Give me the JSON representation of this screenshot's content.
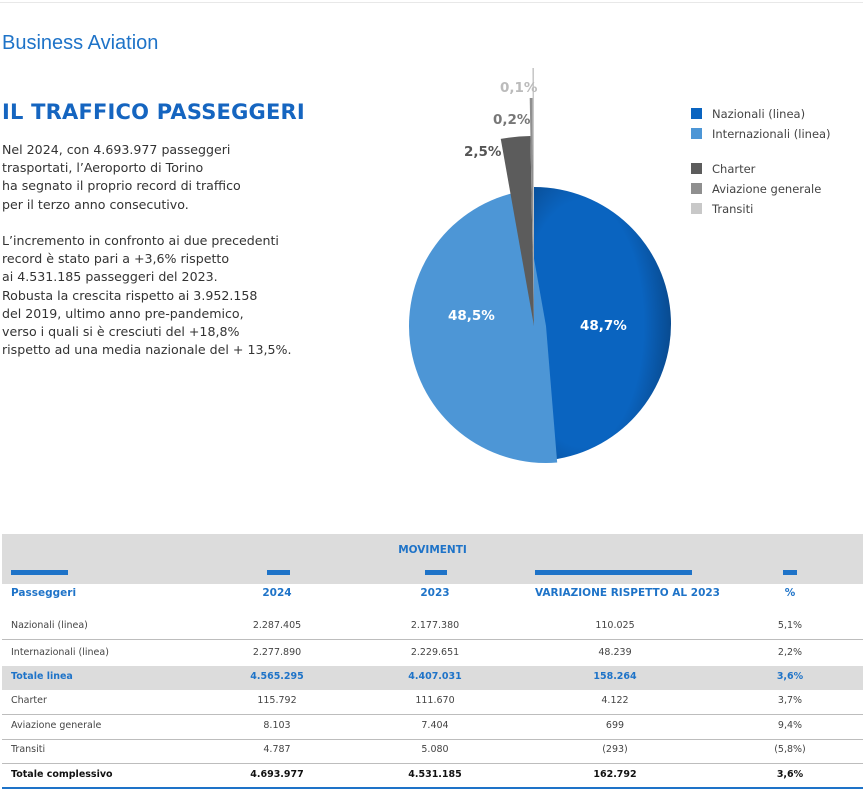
{
  "header": {
    "section_title": "Business Aviation"
  },
  "heading": "IL TRAFFICO PASSEGGERI",
  "paragraph1": [
    "Nel 2024, con 4.693.977 passeggeri",
    "trasportati, l’Aeroporto di Torino",
    "ha segnato il proprio record di traffico",
    "per il terzo anno consecutivo."
  ],
  "paragraph2": [
    "L’incremento in confronto ai due precedenti",
    "record è stato pari a +3,6% rispetto",
    "ai 4.531.185 passeggeri del 2023.",
    "Robusta la crescita rispetto ai 3.952.158",
    "del 2019, ultimo anno pre-pandemico,",
    "verso i quali si è cresciuti del +18,8%",
    "rispetto ad una media nazionale del + 13,5%."
  ],
  "chart_data": {
    "type": "pie",
    "title": "",
    "slices": [
      {
        "label": "Nazionali (linea)",
        "value": 48.7,
        "display": "48,7%",
        "color": "#0a64c0"
      },
      {
        "label": "Internazionali (linea)",
        "value": 48.5,
        "display": "48,5%",
        "color": "#4d96d6"
      },
      {
        "label": "Charter",
        "value": 2.5,
        "display": "2,5%",
        "color": "#5c5c5c"
      },
      {
        "label": "Aviazione generale",
        "value": 0.2,
        "display": "0,2%",
        "color": "#8f8f8f"
      },
      {
        "label": "Transiti",
        "value": 0.1,
        "display": "0,1%",
        "color": "#c8c8c8"
      }
    ],
    "legend": {
      "position": "right",
      "items": [
        {
          "label": "Nazionali (linea)",
          "color": "#0a64c0"
        },
        {
          "label": "Internazionali (linea)",
          "color": "#4d96d6"
        },
        {
          "label": "Charter",
          "color": "#5c5c5c"
        },
        {
          "label": "Aviazione generale",
          "color": "#8f8f8f"
        },
        {
          "label": "Transiti",
          "color": "#c8c8c8"
        }
      ]
    }
  },
  "table": {
    "title": "MOVIMENTI",
    "headers": [
      "Passeggeri",
      "2024",
      "2023",
      "VARIAZIONE RISPETTO AL 2023",
      "%"
    ],
    "rows": [
      [
        "Nazionali (linea)",
        "2.287.405",
        "2.177.380",
        "110.025",
        "5,1%"
      ],
      [
        "Internazionali (linea)",
        "2.277.890",
        "2.229.651",
        "48.239",
        "2,2%"
      ],
      [
        "Totale linea",
        "4.565.295",
        "4.407.031",
        "158.264",
        "3,6%"
      ],
      [
        "Charter",
        "115.792",
        "111.670",
        "4.122",
        "3,7%"
      ],
      [
        "Aviazione generale",
        "8.103",
        "7.404",
        "699",
        "9,4%"
      ],
      [
        "Transiti",
        "4.787",
        "5.080",
        "(293)",
        "(5,8%)"
      ],
      [
        "Totale complessivo",
        "4.693.977",
        "4.531.185",
        "162.792",
        "3,6%"
      ]
    ]
  }
}
